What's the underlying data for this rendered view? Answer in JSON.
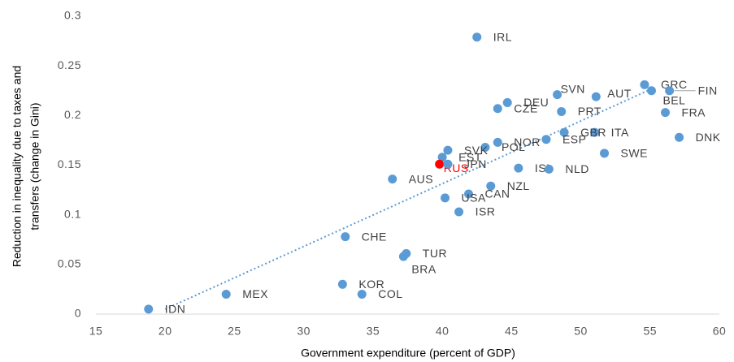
{
  "chart_data": {
    "type": "scatter",
    "x_label": "Government expenditure (percent of GDP)",
    "y_label": [
      "Reduction in inequality due to taxes and",
      "transfers (change  in Gini)"
    ],
    "xlim": [
      15,
      60
    ],
    "xticks": [
      15,
      20,
      25,
      30,
      35,
      40,
      45,
      50,
      55,
      60
    ],
    "ylim": [
      0,
      0.3
    ],
    "yticks": [
      0,
      0.05,
      0.1,
      0.15,
      0.2,
      0.25,
      0.3
    ],
    "color": "#5b9bd5",
    "points": [
      {
        "label": "IRL",
        "x": 42.5,
        "y": 0.279
      },
      {
        "label": "GRC",
        "x": 54.6,
        "y": 0.231
      },
      {
        "label": "FIN",
        "x": 56.4,
        "y": 0.225
      },
      {
        "label": "BEL",
        "x": 55.1,
        "y": 0.225
      },
      {
        "label": "AUT",
        "x": 51.1,
        "y": 0.219
      },
      {
        "label": "SVN",
        "x": 48.3,
        "y": 0.221
      },
      {
        "label": "DEU",
        "x": 44.7,
        "y": 0.213
      },
      {
        "label": "CZE",
        "x": 44.0,
        "y": 0.207
      },
      {
        "label": "PRT",
        "x": 48.6,
        "y": 0.204
      },
      {
        "label": "FRA",
        "x": 56.1,
        "y": 0.203
      },
      {
        "label": "ITA",
        "x": 51.0,
        "y": 0.183
      },
      {
        "label": "GBR",
        "x": 48.8,
        "y": 0.183
      },
      {
        "label": "DNK",
        "x": 57.1,
        "y": 0.178
      },
      {
        "label": "NOR",
        "x": 44.0,
        "y": 0.173
      },
      {
        "label": "ESP",
        "x": 47.5,
        "y": 0.176
      },
      {
        "label": "POL",
        "x": 43.1,
        "y": 0.168
      },
      {
        "label": "SVK",
        "x": 40.4,
        "y": 0.165
      },
      {
        "label": "EST",
        "x": 40.0,
        "y": 0.158
      },
      {
        "label": "RUS",
        "x": 39.8,
        "y": 0.151,
        "color": "#ff0000"
      },
      {
        "label": "JPN",
        "x": 40.4,
        "y": 0.151
      },
      {
        "label": "SWE",
        "x": 51.7,
        "y": 0.162
      },
      {
        "label": "ISL",
        "x": 45.5,
        "y": 0.147
      },
      {
        "label": "NLD",
        "x": 47.7,
        "y": 0.146
      },
      {
        "label": "AUS",
        "x": 36.4,
        "y": 0.136
      },
      {
        "label": "NZL",
        "x": 43.5,
        "y": 0.129
      },
      {
        "label": "CAN",
        "x": 41.9,
        "y": 0.121
      },
      {
        "label": "USA",
        "x": 40.2,
        "y": 0.117
      },
      {
        "label": "ISR",
        "x": 41.2,
        "y": 0.103
      },
      {
        "label": "CHE",
        "x": 33.0,
        "y": 0.078
      },
      {
        "label": "TUR",
        "x": 37.4,
        "y": 0.061
      },
      {
        "label": "BRA",
        "x": 37.2,
        "y": 0.058
      },
      {
        "label": "KOR",
        "x": 32.8,
        "y": 0.03
      },
      {
        "label": "COL",
        "x": 34.2,
        "y": 0.02
      },
      {
        "label": "MEX",
        "x": 24.4,
        "y": 0.02
      },
      {
        "label": "IDN",
        "x": 18.8,
        "y": 0.005
      }
    ],
    "trendline": {
      "x": [
        20.0,
        55.3
      ],
      "y": [
        0.005,
        0.228
      ]
    }
  }
}
